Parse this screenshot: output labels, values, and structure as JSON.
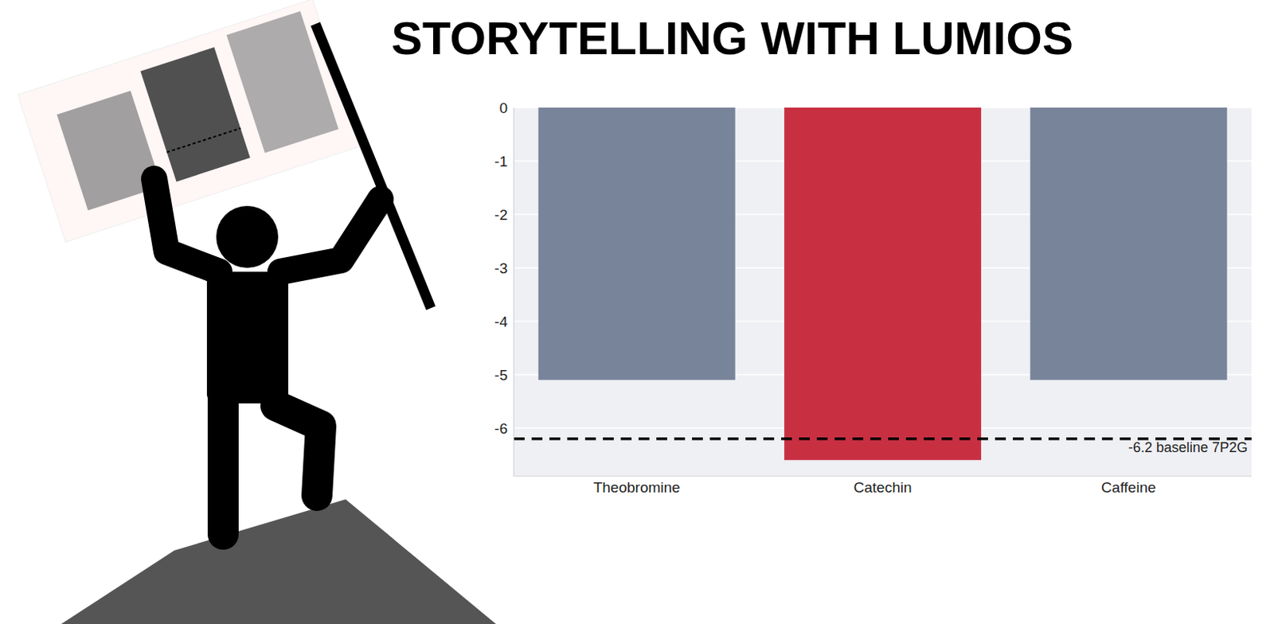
{
  "chart_data": {
    "type": "bar",
    "title": "STORYTELLING WITH LUMIOS",
    "categories": [
      "Theobromine",
      "Catechin",
      "Caffeine"
    ],
    "values": [
      -5.1,
      -6.6,
      -5.1
    ],
    "colors": [
      "#78849a",
      "#c83042",
      "#78849a"
    ],
    "ylim": [
      -6.9,
      0
    ],
    "yticks": [
      -6,
      -5,
      -4,
      -3,
      -2,
      -1,
      0
    ],
    "grid": true,
    "annotations": [
      {
        "y": -6.2,
        "text": "-6.2 baseline 7P2G"
      }
    ]
  }
}
